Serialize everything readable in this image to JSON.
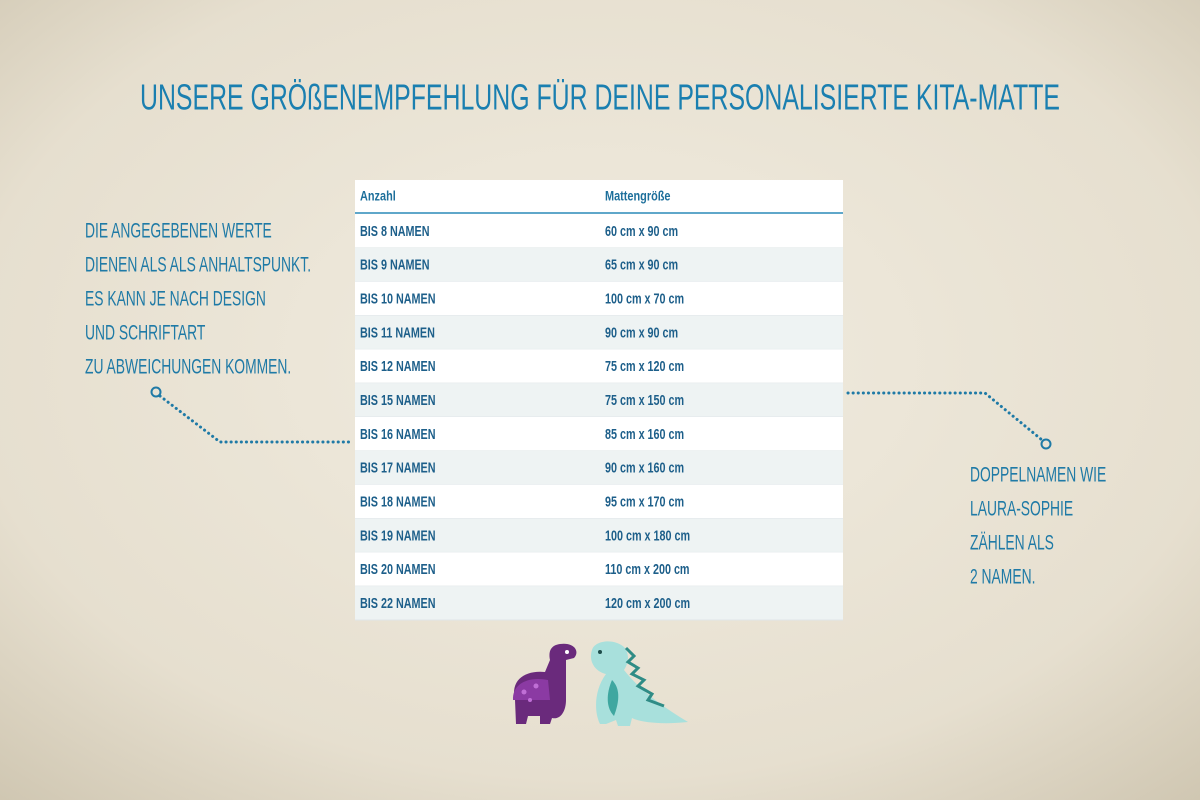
{
  "header": {
    "title": "UNSERE GRÖßENEMPFEHLUNG FÜR DEINE PERSONALISIERTE KITA-MATTE"
  },
  "table": {
    "columns": [
      "Anzahl",
      "Mattengröße"
    ],
    "rows": [
      [
        "BIS 8 NAMEN",
        "60 cm x 90 cm"
      ],
      [
        "BIS 9 NAMEN",
        "65 cm x 90 cm"
      ],
      [
        "BIS 10 NAMEN",
        "100 cm x 70 cm"
      ],
      [
        "BIS 11 NAMEN",
        "90 cm x 90 cm"
      ],
      [
        "BIS 12 NAMEN",
        "75 cm x 120 cm"
      ],
      [
        "BIS 15 NAMEN",
        "75 cm x 150 cm"
      ],
      [
        "BIS 16 NAMEN",
        "85 cm x 160 cm"
      ],
      [
        "BIS 17 NAMEN",
        "90 cm x 160 cm"
      ],
      [
        "BIS 18 NAMEN",
        "95 cm x 170 cm"
      ],
      [
        "BIS 19 NAMEN",
        "100 cm x 180 cm"
      ],
      [
        "BIS 20 NAMEN",
        "110 cm x 200 cm"
      ],
      [
        "BIS 22 NAMEN",
        "120 cm x 200 cm"
      ]
    ]
  },
  "notes": {
    "left": [
      "DIE ANGEGEBENEN WERTE",
      "DIENEN ALS ALS ANHALTSPUNKT.",
      "ES KANN JE NACH DESIGN",
      "UND SCHRIFTART",
      "ZU ABWEICHUNGEN KOMMEN."
    ],
    "right": [
      "DOPPELNAMEN WIE",
      "LAURA-SOPHIE",
      "ZÄHLEN ALS",
      "2 NAMEN."
    ]
  }
}
